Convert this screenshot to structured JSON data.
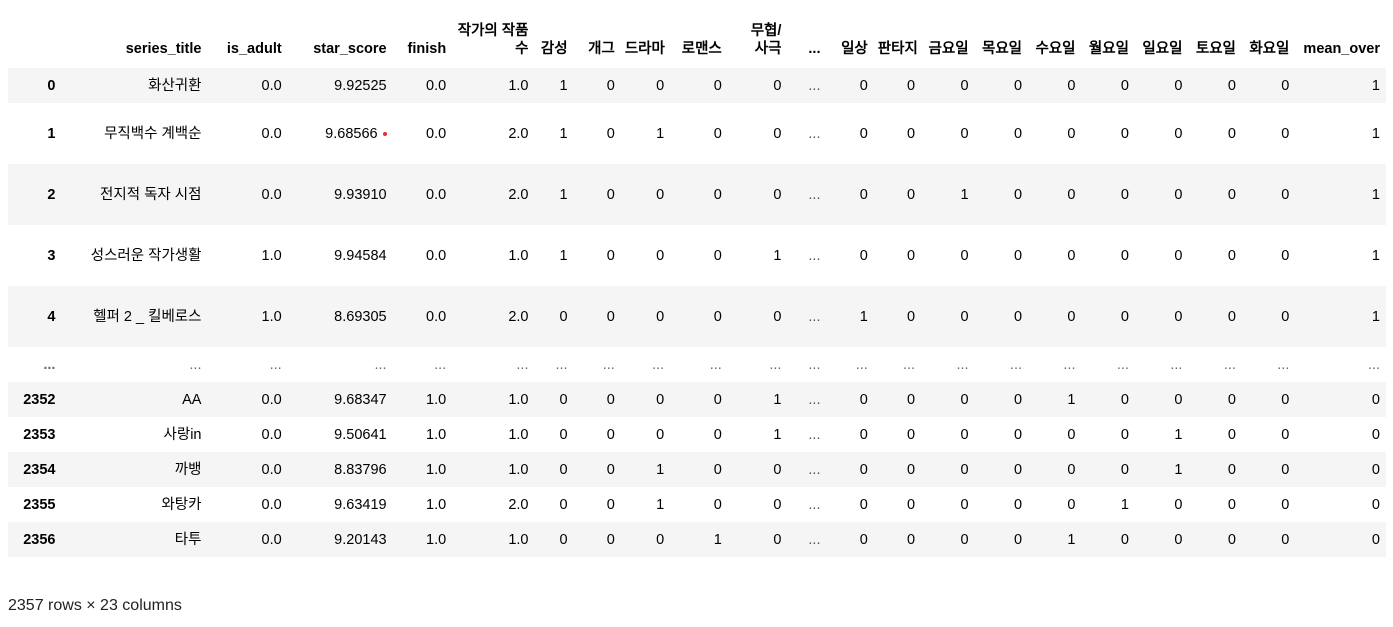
{
  "columns": [
    "",
    "series_title",
    "is_adult",
    "star_score",
    "finish",
    "작가의 작품 수",
    "감성",
    "개그",
    "드라마",
    "로맨스",
    "무협/사극",
    "...",
    "일상",
    "판타지",
    "금요일",
    "목요일",
    "수요일",
    "월요일",
    "일요일",
    "토요일",
    "화요일",
    "mean_over"
  ],
  "rows": [
    {
      "idx": "0",
      "cells": [
        "화산귀환",
        "0.0",
        "9.92525",
        "0.0",
        "1.0",
        "1",
        "0",
        "0",
        "0",
        "0",
        "...",
        "0",
        "0",
        "0",
        "0",
        "0",
        "0",
        "0",
        "0",
        "0",
        "1"
      ]
    },
    {
      "idx": "1",
      "cells": [
        "무직백수 계백순",
        "0.0",
        "9.68566",
        "0.0",
        "2.0",
        "1",
        "0",
        "1",
        "0",
        "0",
        "...",
        "0",
        "0",
        "0",
        "0",
        "0",
        "0",
        "0",
        "0",
        "0",
        "1"
      ]
    },
    {
      "idx": "2",
      "cells": [
        "전지적 독자 시점",
        "0.0",
        "9.93910",
        "0.0",
        "2.0",
        "1",
        "0",
        "0",
        "0",
        "0",
        "...",
        "0",
        "0",
        "1",
        "0",
        "0",
        "0",
        "0",
        "0",
        "0",
        "1"
      ]
    },
    {
      "idx": "3",
      "cells": [
        "성스러운 작가생활",
        "1.0",
        "9.94584",
        "0.0",
        "1.0",
        "1",
        "0",
        "0",
        "0",
        "1",
        "...",
        "0",
        "0",
        "0",
        "0",
        "0",
        "0",
        "0",
        "0",
        "0",
        "1"
      ]
    },
    {
      "idx": "4",
      "cells": [
        "헬퍼 2 _ 킬베로스",
        "1.0",
        "8.69305",
        "0.0",
        "2.0",
        "0",
        "0",
        "0",
        "0",
        "0",
        "...",
        "1",
        "0",
        "0",
        "0",
        "0",
        "0",
        "0",
        "0",
        "0",
        "1"
      ]
    },
    {
      "idx": "...",
      "cells": [
        "...",
        "...",
        "...",
        "...",
        "...",
        "...",
        "...",
        "...",
        "...",
        "...",
        "...",
        "...",
        "...",
        "...",
        "...",
        "...",
        "...",
        "...",
        "...",
        "...",
        "..."
      ]
    },
    {
      "idx": "2352",
      "cells": [
        "AA",
        "0.0",
        "9.68347",
        "1.0",
        "1.0",
        "0",
        "0",
        "0",
        "0",
        "1",
        "...",
        "0",
        "0",
        "0",
        "0",
        "1",
        "0",
        "0",
        "0",
        "0",
        "0"
      ]
    },
    {
      "idx": "2353",
      "cells": [
        "사랑in",
        "0.0",
        "9.50641",
        "1.0",
        "1.0",
        "0",
        "0",
        "0",
        "0",
        "1",
        "...",
        "0",
        "0",
        "0",
        "0",
        "0",
        "0",
        "1",
        "0",
        "0",
        "0"
      ]
    },
    {
      "idx": "2354",
      "cells": [
        "까뱅",
        "0.0",
        "8.83796",
        "1.0",
        "1.0",
        "0",
        "0",
        "1",
        "0",
        "0",
        "...",
        "0",
        "0",
        "0",
        "0",
        "0",
        "0",
        "1",
        "0",
        "0",
        "0"
      ]
    },
    {
      "idx": "2355",
      "cells": [
        "와탕카",
        "0.0",
        "9.63419",
        "1.0",
        "2.0",
        "0",
        "0",
        "1",
        "0",
        "0",
        "...",
        "0",
        "0",
        "0",
        "0",
        "0",
        "1",
        "0",
        "0",
        "0",
        "0"
      ]
    },
    {
      "idx": "2356",
      "cells": [
        "타투",
        "0.0",
        "9.20143",
        "1.0",
        "1.0",
        "0",
        "0",
        "0",
        "1",
        "0",
        "...",
        "0",
        "0",
        "0",
        "0",
        "1",
        "0",
        "0",
        "0",
        "0",
        "0"
      ]
    }
  ],
  "footer": "2357 rows × 23 columns"
}
